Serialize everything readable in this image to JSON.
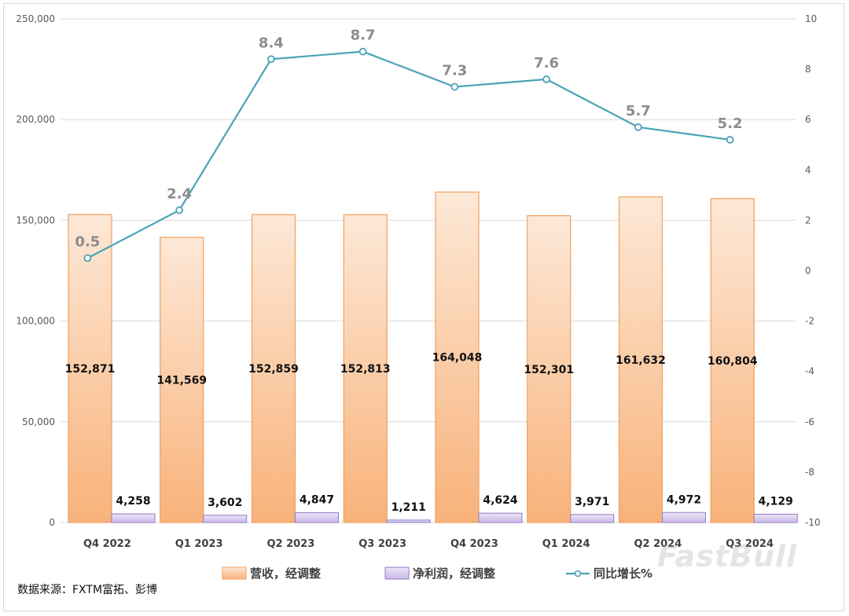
{
  "chart_data": {
    "type": "bar",
    "categories": [
      "Q4 2022",
      "Q1 2023",
      "Q2 2023",
      "Q3 2023",
      "Q4 2023",
      "Q1 2024",
      "Q2 2024",
      "Q3 2024"
    ],
    "series": [
      {
        "name": "营收，经调整",
        "type": "bar",
        "axis": "left",
        "values": [
          152871,
          141569,
          152859,
          152813,
          164048,
          152301,
          161632,
          160804
        ],
        "labels": [
          "152,871",
          "141,569",
          "152,859",
          "152,813",
          "164,048",
          "152,301",
          "161,632",
          "160,804"
        ],
        "color": "#f8b27a"
      },
      {
        "name": "净利润，经调整",
        "type": "bar",
        "axis": "left",
        "values": [
          4258,
          3602,
          4847,
          1211,
          4624,
          3971,
          4972,
          4129
        ],
        "labels": [
          "4,258",
          "3,602",
          "4,847",
          "1,211",
          "4,624",
          "3,971",
          "4,972",
          "4,129"
        ],
        "color": "#c9b8e8"
      },
      {
        "name": "同比增长%",
        "type": "line",
        "axis": "right",
        "values": [
          0.5,
          2.4,
          8.4,
          8.7,
          7.3,
          7.6,
          5.7,
          5.2
        ],
        "labels": [
          "0.5",
          "2.4",
          "8.4",
          "8.7",
          "7.3",
          "7.6",
          "5.7",
          "5.2"
        ],
        "color": "#4aa3b8"
      }
    ],
    "left_axis": {
      "min": 0,
      "max": 250000,
      "ticks": [
        0,
        50000,
        100000,
        150000,
        200000,
        250000
      ],
      "tick_labels": [
        "0",
        "50,000",
        "100,000",
        "150,000",
        "200,000",
        "250,000"
      ]
    },
    "right_axis": {
      "min": -10,
      "max": 10,
      "ticks": [
        -10,
        -8,
        -6,
        -4,
        -2,
        0,
        2,
        4,
        6,
        8,
        10
      ],
      "tick_labels": [
        "-10",
        "-8",
        "-6",
        "-4",
        "-2",
        "0",
        "2",
        "4",
        "6",
        "8",
        "10"
      ]
    },
    "grid": true,
    "legend_position": "bottom"
  },
  "source_note": "数据来源：FXTM富拓、彭博",
  "watermark": "FastBull"
}
